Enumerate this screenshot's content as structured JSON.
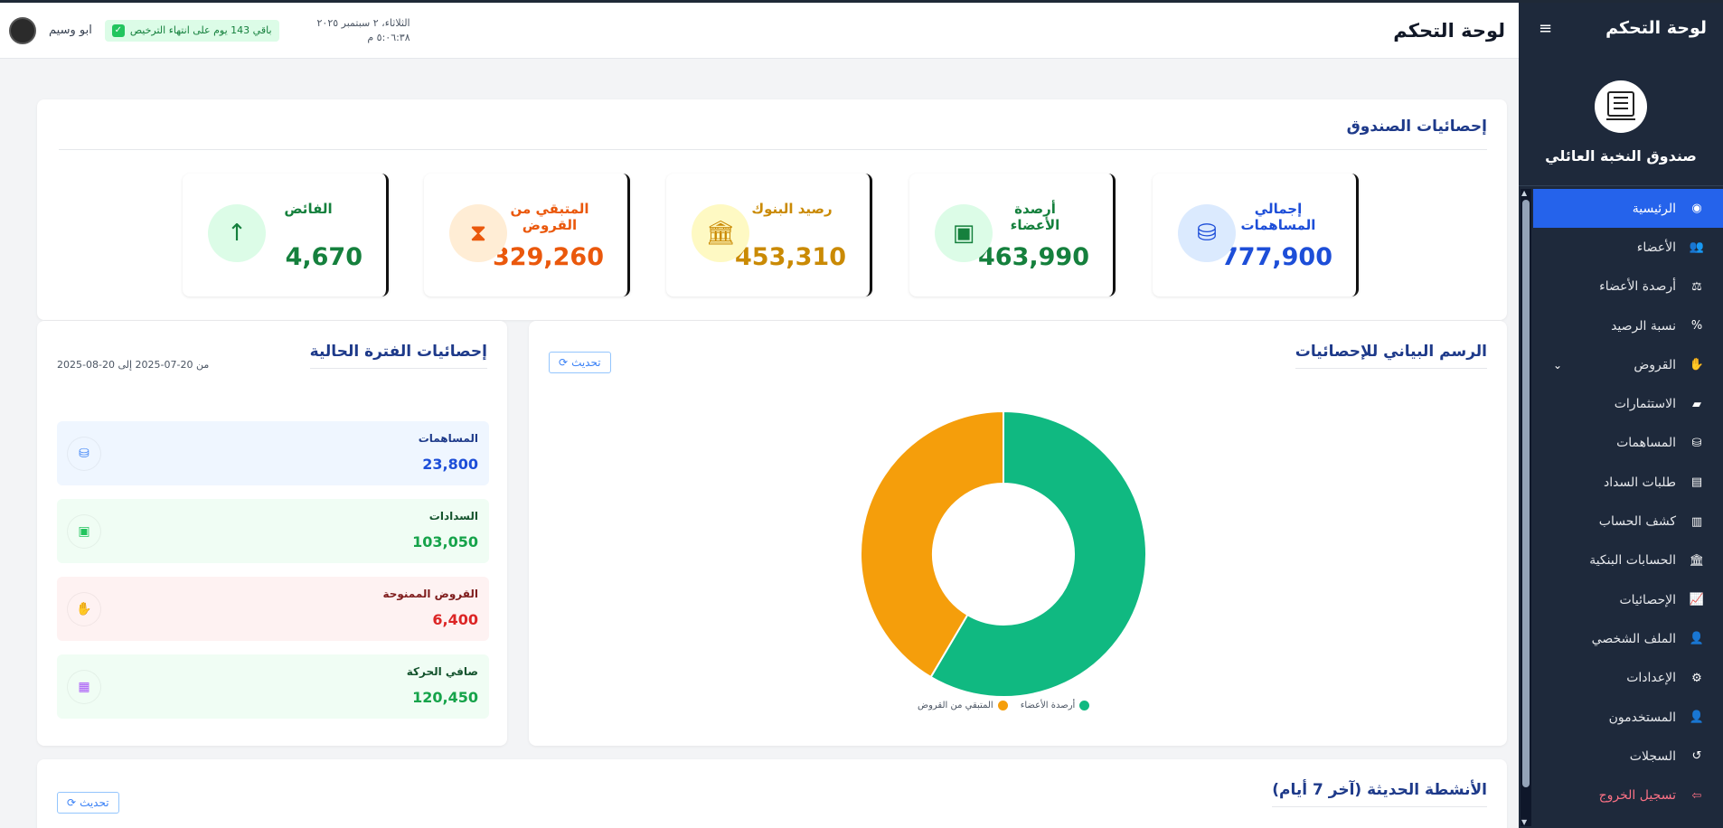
{
  "sidebar": {
    "title": "لوحة التحكم",
    "fund_name": "صندوق النخبة العائلي",
    "items": [
      {
        "label": "الرئيسية",
        "icon": "gauge-icon",
        "glyph": "◉",
        "active": true
      },
      {
        "label": "الأعضاء",
        "icon": "users-icon",
        "glyph": "👥"
      },
      {
        "label": "أرصدة الأعضاء",
        "icon": "scale-icon",
        "glyph": "⚖"
      },
      {
        "label": "نسبة الرصيد",
        "icon": "percent-icon",
        "glyph": "%"
      },
      {
        "label": "القروض",
        "icon": "hand-holding-icon",
        "glyph": "✋",
        "expandable": true
      },
      {
        "label": "الاستثمارات",
        "icon": "chart-area-icon",
        "glyph": "▰"
      },
      {
        "label": "المساهمات",
        "icon": "coins-icon",
        "glyph": "⛁"
      },
      {
        "label": "طلبات السداد",
        "icon": "file-icon",
        "glyph": "▤"
      },
      {
        "label": "كشف الحساب",
        "icon": "file-invoice-icon",
        "glyph": "▥"
      },
      {
        "label": "الحسابات البنكية",
        "icon": "bank-icon",
        "glyph": "🏛"
      },
      {
        "label": "الإحصائيات",
        "icon": "chart-line-icon",
        "glyph": "📈"
      },
      {
        "label": "الملف الشخصي",
        "icon": "user-icon",
        "glyph": "👤"
      },
      {
        "label": "الإعدادات",
        "icon": "gear-icon",
        "glyph": "⚙"
      },
      {
        "label": "المستخدمون",
        "icon": "user-cog-icon",
        "glyph": "👤"
      },
      {
        "label": "السجلات",
        "icon": "history-icon",
        "glyph": "↺"
      },
      {
        "label": "تسجيل الخروج",
        "icon": "logout-icon",
        "glyph": "⇦",
        "logout": true
      }
    ]
  },
  "header": {
    "title": "لوحة التحكم",
    "date": "الثلاثاء، ٢ سبتمبر ٢٠٢٥",
    "time": "٥:٠٦:٣٨ م",
    "license": "باقي 143 يوم على انتهاء الترخيص",
    "user_name": "ابو وسيم"
  },
  "stats": {
    "title": "إحصائيات الصندوق",
    "cards": [
      {
        "label": "إجمالي المساهمات",
        "value": "777,900",
        "icon": "coins-icon",
        "color": "#1d4ed8",
        "circle": "#dbeafe",
        "glyph": "⛁"
      },
      {
        "label": "أرصدة الأعضاء",
        "value": "463,990",
        "icon": "wallet-icon",
        "color": "#15803d",
        "circle": "#dcfce7",
        "glyph": "▣"
      },
      {
        "label": "رصيد البنوك",
        "value": "453,310",
        "icon": "bank-icon",
        "color": "#ca8a04",
        "circle": "#fef9c3",
        "glyph": "🏛"
      },
      {
        "label": "المتبقي من القروض",
        "value": "329,260",
        "icon": "hourglass-icon",
        "color": "#ea580c",
        "circle": "#ffedd5",
        "glyph": "⧗"
      },
      {
        "label": "الفائض",
        "value": "4,670",
        "icon": "arrow-up-icon",
        "color": "#15803d",
        "circle": "#dcfce7",
        "glyph": "↑"
      }
    ]
  },
  "chart_section": {
    "title": "الرسم البياني للإحصائيات",
    "refresh_label": "تحديث"
  },
  "chart_data": {
    "type": "pie",
    "categories": [
      "أرصدة الأعضاء",
      "المتبقي من القروض"
    ],
    "values": [
      463990,
      329260
    ],
    "colors": [
      "#10b981",
      "#f59e0b"
    ],
    "legend_position": "bottom"
  },
  "period": {
    "title": "إحصائيات الفترة الحالية",
    "range": "من 20-07-2025 إلى 20-08-2025",
    "items": [
      {
        "label": "المساهمات",
        "value": "23,800",
        "icon": "coins-icon",
        "glyph": "⛁",
        "bg": "#eff6ff",
        "label_color": "#1e3a8a",
        "value_color": "#1d4ed8",
        "icon_color": "#3b82f6"
      },
      {
        "label": "السدادات",
        "value": "103,050",
        "icon": "money-bill-icon",
        "glyph": "▣",
        "bg": "#f0fdf4",
        "label_color": "#14532d",
        "value_color": "#16a34a",
        "icon_color": "#22c55e"
      },
      {
        "label": "القروض الممنوحة",
        "value": "6,400",
        "icon": "hand-holding-icon",
        "glyph": "✋",
        "bg": "#fef2f2",
        "label_color": "#7f1d1d",
        "value_color": "#dc2626",
        "icon_color": "#ef4444"
      },
      {
        "label": "صافي الحركة",
        "value": "120,450",
        "icon": "calculator-icon",
        "glyph": "▦",
        "bg": "#f0fdf4",
        "label_color": "#14532d",
        "value_color": "#16a34a",
        "icon_color": "#a855f7"
      }
    ]
  },
  "activity": {
    "title": "الأنشطة الحديثة (آخر 7 أيام)",
    "refresh_label": "تحديث"
  }
}
